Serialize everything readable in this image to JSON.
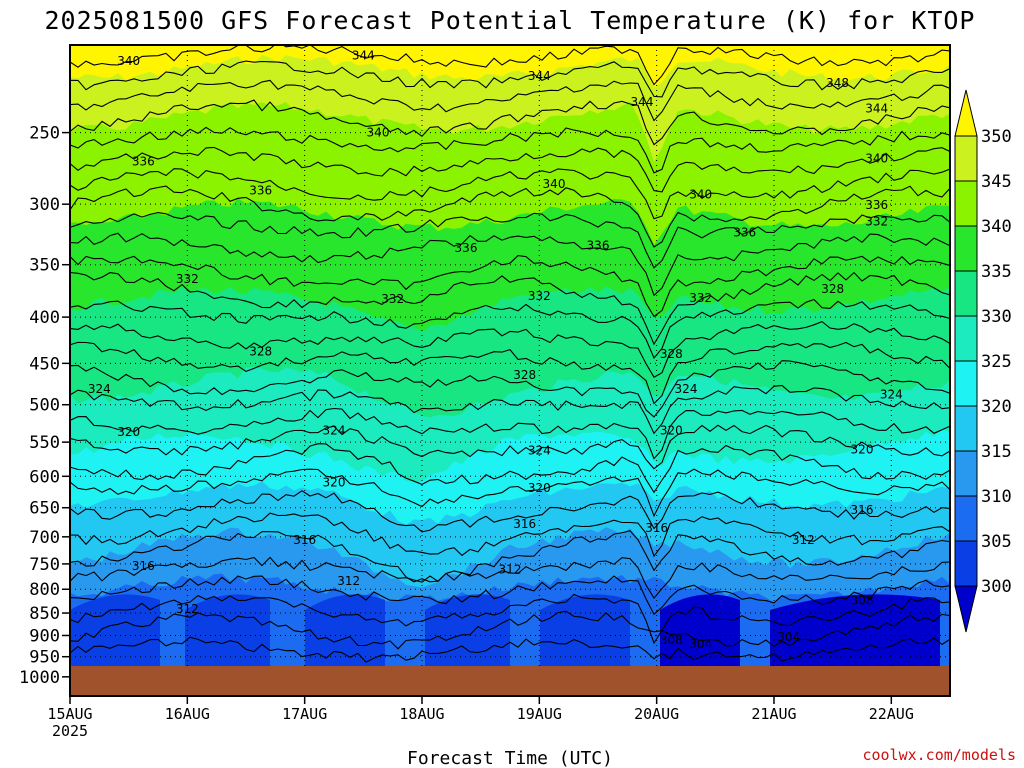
{
  "chart_data": {
    "type": "heatmap",
    "title": "2025081500 GFS Forecast Potential Temperature (K) for KTOP",
    "xlabel": "Forecast Time (UTC)",
    "ylabel": "",
    "x_ticks": [
      "15AUG",
      "16AUG",
      "17AUG",
      "18AUG",
      "19AUG",
      "20AUG",
      "21AUG",
      "22AUG"
    ],
    "x_tick_sublabel": "2025",
    "x_range": [
      "2025-08-15T00",
      "2025-08-22T12"
    ],
    "y_ticks": [
      250,
      300,
      350,
      400,
      450,
      500,
      550,
      600,
      650,
      700,
      750,
      800,
      850,
      900,
      950,
      1000
    ],
    "y_range": [
      1050,
      200
    ],
    "y_scale": "log",
    "grid": true,
    "colorbar": {
      "ticks": [
        300,
        305,
        310,
        315,
        320,
        325,
        330,
        335,
        340,
        345,
        350
      ],
      "colors": [
        "#0000cc",
        "#0a3fe6",
        "#1b6cf0",
        "#2999f0",
        "#23c8f2",
        "#1ff2f2",
        "#1bebbf",
        "#17e682",
        "#28e62b",
        "#8bf200",
        "#cbf21f",
        "#fff500"
      ],
      "placement": "right"
    },
    "contour_labels": [
      {
        "time": "2025-08-15T12",
        "pressure": 210,
        "value": 340
      },
      {
        "time": "2025-08-17T12",
        "pressure": 207,
        "value": 344
      },
      {
        "time": "2025-08-19T00",
        "pressure": 218,
        "value": 344
      },
      {
        "time": "2025-08-19T21",
        "pressure": 233,
        "value": 344
      },
      {
        "time": "2025-08-21T13",
        "pressure": 222,
        "value": 348
      },
      {
        "time": "2025-08-21T21",
        "pressure": 237,
        "value": 344
      },
      {
        "time": "2025-08-17T15",
        "pressure": 252,
        "value": 340
      },
      {
        "time": "2025-08-19T03",
        "pressure": 287,
        "value": 340
      },
      {
        "time": "2025-08-20T09",
        "pressure": 295,
        "value": 340
      },
      {
        "time": "2025-08-21T21",
        "pressure": 269,
        "value": 340
      },
      {
        "time": "2025-08-15T15",
        "pressure": 271,
        "value": 336
      },
      {
        "time": "2025-08-16T15",
        "pressure": 292,
        "value": 336
      },
      {
        "time": "2025-08-18T09",
        "pressure": 338,
        "value": 336
      },
      {
        "time": "2025-08-19T12",
        "pressure": 336,
        "value": 336
      },
      {
        "time": "2025-08-20T18",
        "pressure": 325,
        "value": 336
      },
      {
        "time": "2025-08-21T21",
        "pressure": 303,
        "value": 336
      },
      {
        "time": "2025-08-21T21",
        "pressure": 316,
        "value": 332
      },
      {
        "time": "2025-08-16T00",
        "pressure": 366,
        "value": 332
      },
      {
        "time": "2025-08-17T18",
        "pressure": 385,
        "value": 332
      },
      {
        "time": "2025-08-19T00",
        "pressure": 382,
        "value": 332
      },
      {
        "time": "2025-08-20T09",
        "pressure": 384,
        "value": 332
      },
      {
        "time": "2025-08-21T12",
        "pressure": 375,
        "value": 328
      },
      {
        "time": "2025-08-16T15",
        "pressure": 440,
        "value": 328
      },
      {
        "time": "2025-08-18T21",
        "pressure": 467,
        "value": 328
      },
      {
        "time": "2025-08-20T03",
        "pressure": 443,
        "value": 328
      },
      {
        "time": "2025-08-15T06",
        "pressure": 484,
        "value": 324
      },
      {
        "time": "2025-08-20T06",
        "pressure": 484,
        "value": 324
      },
      {
        "time": "2025-08-22T00",
        "pressure": 491,
        "value": 324
      },
      {
        "time": "2025-08-17T06",
        "pressure": 538,
        "value": 324
      },
      {
        "time": "2025-08-19T00",
        "pressure": 566,
        "value": 324
      },
      {
        "time": "2025-08-15T12",
        "pressure": 540,
        "value": 320
      },
      {
        "time": "2025-08-20T03",
        "pressure": 538,
        "value": 320
      },
      {
        "time": "2025-08-21T18",
        "pressure": 565,
        "value": 320
      },
      {
        "time": "2025-08-17T06",
        "pressure": 614,
        "value": 320
      },
      {
        "time": "2025-08-19T00",
        "pressure": 623,
        "value": 320
      },
      {
        "time": "2025-08-21T18",
        "pressure": 659,
        "value": 316
      },
      {
        "time": "2025-08-18T21",
        "pressure": 683,
        "value": 316
      },
      {
        "time": "2025-08-20T00",
        "pressure": 690,
        "value": 316
      },
      {
        "time": "2025-08-17T00",
        "pressure": 711,
        "value": 316
      },
      {
        "time": "2025-08-15T15",
        "pressure": 760,
        "value": 316
      },
      {
        "time": "2025-08-21T06",
        "pressure": 711,
        "value": 312
      },
      {
        "time": "2025-08-18T18",
        "pressure": 767,
        "value": 312
      },
      {
        "time": "2025-08-17T09",
        "pressure": 789,
        "value": 312
      },
      {
        "time": "2025-08-16T00",
        "pressure": 848,
        "value": 312
      },
      {
        "time": "2025-08-21T18",
        "pressure": 830,
        "value": 308
      },
      {
        "time": "2025-08-20T03",
        "pressure": 917,
        "value": 308
      },
      {
        "time": "2025-08-20T09",
        "pressure": 927,
        "value": 304
      },
      {
        "time": "2025-08-21T03",
        "pressure": 910,
        "value": 304
      }
    ]
  },
  "credit": "coolwx.com/models",
  "ground_color": "#a0522d"
}
